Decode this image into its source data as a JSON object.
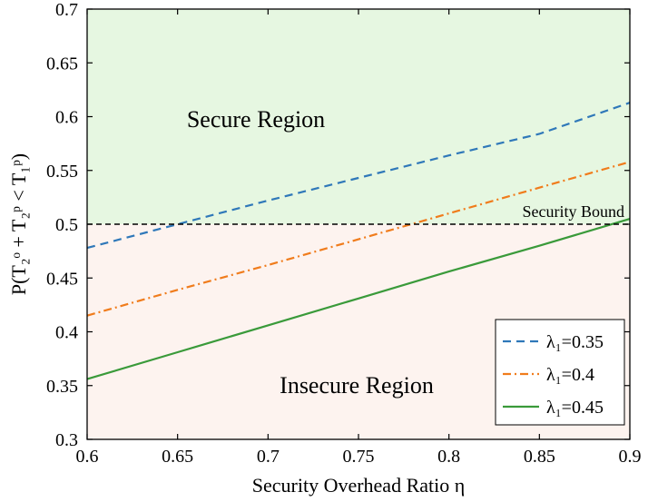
{
  "chart_data": {
    "type": "line",
    "xlabel": "Security Overhead Ratio η",
    "ylabel": "P(T₂ᵒ + T₂ᵖ < T₁ᵖ)",
    "xlim": [
      0.6,
      0.9
    ],
    "ylim": [
      0.3,
      0.7
    ],
    "xticks": [
      "0.6",
      "0.65",
      "0.7",
      "0.75",
      "0.8",
      "0.85",
      "0.9"
    ],
    "yticks": [
      "0.3",
      "0.35",
      "0.4",
      "0.45",
      "0.5",
      "0.55",
      "0.6",
      "0.65",
      "0.7"
    ],
    "grid": false,
    "legend_position": "bottom-right",
    "series": [
      {
        "name": "λ₁=0.35",
        "color": "#2f78b9",
        "style": "dashed",
        "x": [
          0.6,
          0.65,
          0.7,
          0.75,
          0.8,
          0.85,
          0.9
        ],
        "y": [
          0.478,
          0.5,
          0.522,
          0.543,
          0.564,
          0.584,
          0.613
        ]
      },
      {
        "name": "λ₁=0.4",
        "color": "#f07c1c",
        "style": "dashdot",
        "x": [
          0.6,
          0.65,
          0.7,
          0.75,
          0.8,
          0.85,
          0.9
        ],
        "y": [
          0.415,
          0.439,
          0.462,
          0.486,
          0.51,
          0.534,
          0.558
        ]
      },
      {
        "name": "λ₁=0.45",
        "color": "#3a9a3a",
        "style": "solid",
        "x": [
          0.6,
          0.65,
          0.7,
          0.75,
          0.8,
          0.85,
          0.9
        ],
        "y": [
          0.356,
          0.381,
          0.406,
          0.431,
          0.456,
          0.48,
          0.505
        ]
      }
    ],
    "threshold": {
      "y": 0.5,
      "label": "Security Bound",
      "color": "#000000"
    },
    "regions": [
      {
        "label": "Secure Region",
        "y_from": 0.5,
        "y_to": 0.7,
        "color": "#e6f7e1"
      },
      {
        "label": "Insecure Region",
        "y_from": 0.3,
        "y_to": 0.5,
        "color": "#fdf3ef"
      }
    ]
  }
}
